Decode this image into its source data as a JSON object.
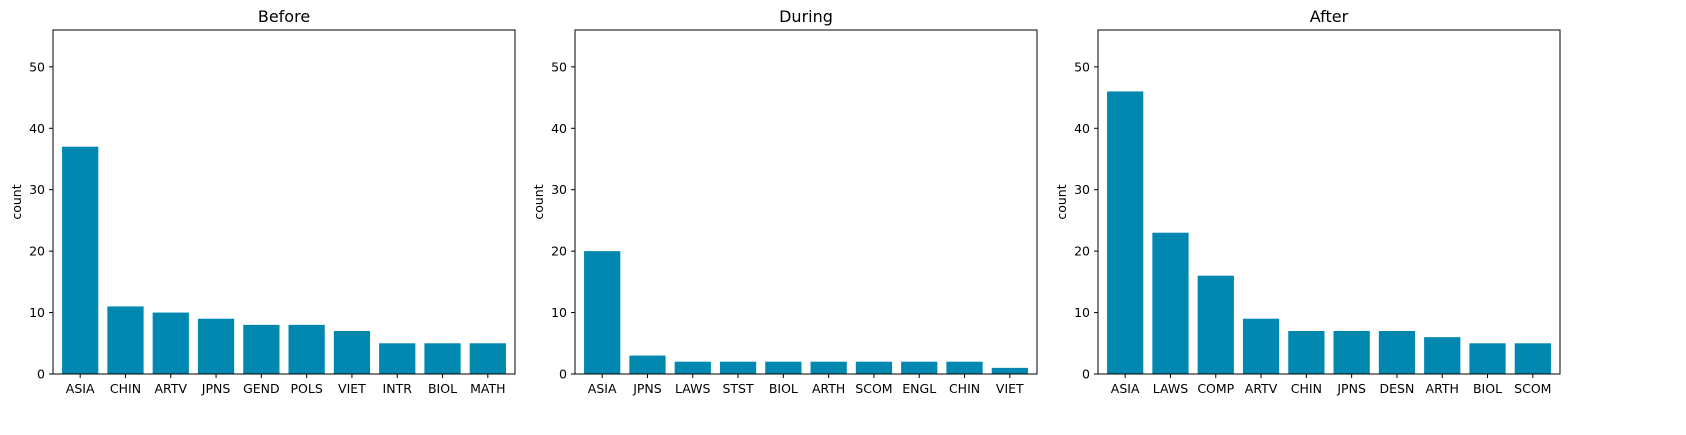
{
  "colors": {
    "bar": "#0088b0",
    "axis": "#000000",
    "background": "#ffffff"
  },
  "chart_data": [
    {
      "type": "bar",
      "title": "Before",
      "xlabel": "",
      "ylabel": "count",
      "ylim": [
        0,
        56
      ],
      "yticks": [
        0,
        10,
        20,
        30,
        40,
        50
      ],
      "grid": false,
      "categories": [
        "ASIA",
        "CHIN",
        "ARTV",
        "JPNS",
        "GEND",
        "POLS",
        "VIET",
        "INTR",
        "BIOL",
        "MATH"
      ],
      "values": [
        37,
        11,
        10,
        9,
        8,
        8,
        7,
        5,
        5,
        5
      ]
    },
    {
      "type": "bar",
      "title": "During",
      "xlabel": "",
      "ylabel": "count",
      "ylim": [
        0,
        56
      ],
      "yticks": [
        0,
        10,
        20,
        30,
        40,
        50
      ],
      "grid": false,
      "categories": [
        "ASIA",
        "JPNS",
        "LAWS",
        "STST",
        "BIOL",
        "ARTH",
        "SCOM",
        "ENGL",
        "CHIN",
        "VIET"
      ],
      "values": [
        20,
        3,
        2,
        2,
        2,
        2,
        2,
        2,
        2,
        1
      ]
    },
    {
      "type": "bar",
      "title": "After",
      "xlabel": "",
      "ylabel": "count",
      "ylim": [
        0,
        56
      ],
      "yticks": [
        0,
        10,
        20,
        30,
        40,
        50
      ],
      "grid": false,
      "categories": [
        "ASIA",
        "LAWS",
        "COMP",
        "ARTV",
        "CHIN",
        "JPNS",
        "DESN",
        "ARTH",
        "BIOL",
        "SCOM"
      ],
      "values": [
        46,
        23,
        16,
        9,
        7,
        7,
        7,
        6,
        5,
        5
      ]
    }
  ]
}
